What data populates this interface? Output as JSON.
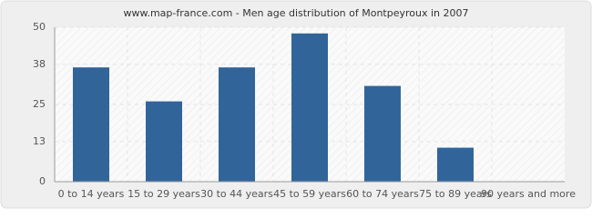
{
  "chart_data": {
    "type": "bar",
    "title": "www.map-france.com - Men age distribution of Montpeyroux in 2007",
    "categories": [
      "0 to 14 years",
      "15 to 29 years",
      "30 to 44 years",
      "45 to 59 years",
      "60 to 74 years",
      "75 to 89 years",
      "90 years and more"
    ],
    "values": [
      37,
      26,
      37,
      48,
      31,
      11,
      0
    ],
    "color": "#31659a",
    "ylim": [
      0,
      50
    ],
    "yticks": [
      0,
      13,
      25,
      38,
      50
    ],
    "grid": true
  }
}
